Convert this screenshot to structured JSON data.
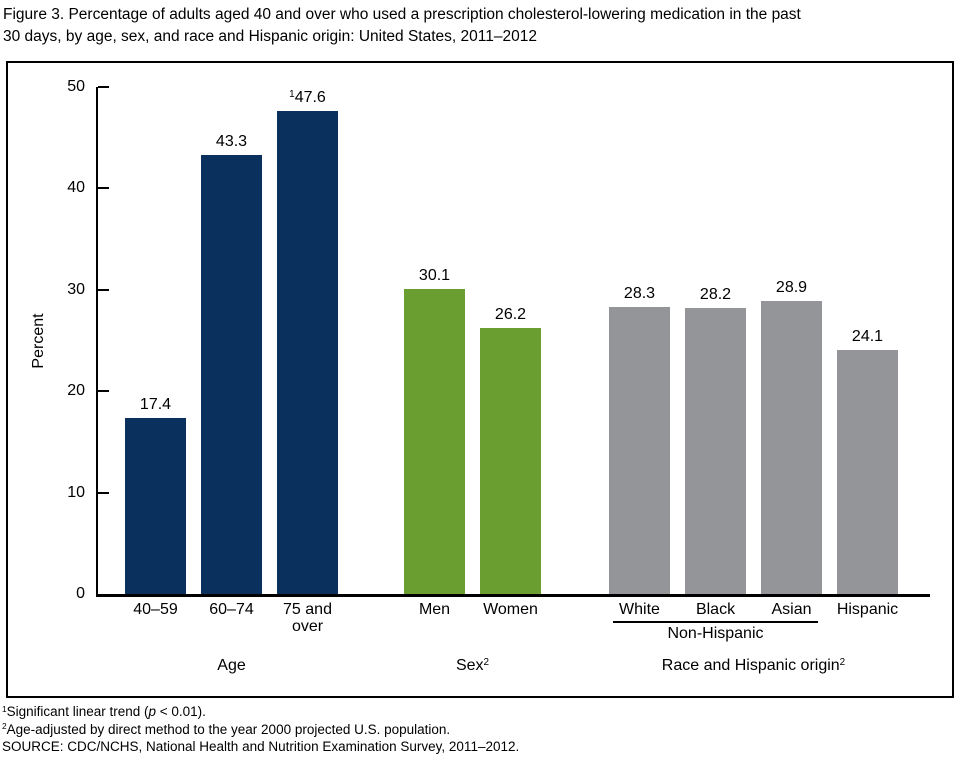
{
  "chart_data": {
    "type": "bar",
    "title": "Figure 3. Percentage of adults aged 40 and over who used a prescription cholesterol-lowering medication in the past\n30 days, by age, sex, and race and Hispanic origin: United States, 2011–2012",
    "ylabel": "Percent",
    "ylim": [
      0,
      50
    ],
    "yticks": [
      0,
      10,
      20,
      30,
      40,
      50
    ],
    "grid": "off",
    "legend": "none",
    "groups": [
      {
        "label": "Age",
        "label_sup": null,
        "color": "#0a305e",
        "bars": [
          {
            "category": "40–59",
            "value": 17.4,
            "value_label": "17.4",
            "value_sup": null
          },
          {
            "category": "60–74",
            "value": 43.3,
            "value_label": "43.3",
            "value_sup": null
          },
          {
            "category": "75 and over",
            "value": 47.6,
            "value_label": "47.6",
            "value_sup": "1"
          }
        ]
      },
      {
        "label": "Sex",
        "label_sup": "2",
        "color": "#6a9e30",
        "bars": [
          {
            "category": "Men",
            "value": 30.1,
            "value_label": "30.1",
            "value_sup": null
          },
          {
            "category": "Women",
            "value": 26.2,
            "value_label": "26.2",
            "value_sup": null
          }
        ]
      },
      {
        "label": "Race and Hispanic origin",
        "label_sup": "2",
        "color": "#949598",
        "bars": [
          {
            "category": "White",
            "value": 28.3,
            "value_label": "28.3",
            "value_sup": null
          },
          {
            "category": "Black",
            "value": 28.2,
            "value_label": "28.2",
            "value_sup": null
          },
          {
            "category": "Asian",
            "value": 28.9,
            "value_label": "28.9",
            "value_sup": null
          },
          {
            "category": "Hispanic",
            "value": 24.1,
            "value_label": "24.1",
            "value_sup": null
          }
        ],
        "subgroup": {
          "label": "Non-Hispanic",
          "from_index": 0,
          "to_index": 2
        }
      }
    ]
  },
  "footnotes": [
    {
      "sup": "1",
      "parts": [
        {
          "t": "Significant linear trend ("
        },
        {
          "t": "p",
          "italic": true
        },
        {
          "t": " < 0.01)."
        }
      ]
    },
    {
      "sup": "2",
      "parts": [
        {
          "t": "Age-adjusted by direct method to the year 2000 projected U.S. population."
        }
      ]
    },
    {
      "sup": null,
      "parts": [
        {
          "t": "SOURCE: CDC/NCHS, National Health and Nutrition Examination Survey, 2011–2012."
        }
      ]
    }
  ],
  "colors": {
    "age_bars": "#0a305e",
    "sex_bars": "#6a9e30",
    "race_bars": "#949598",
    "axis": "#000000",
    "background": "#ffffff"
  }
}
